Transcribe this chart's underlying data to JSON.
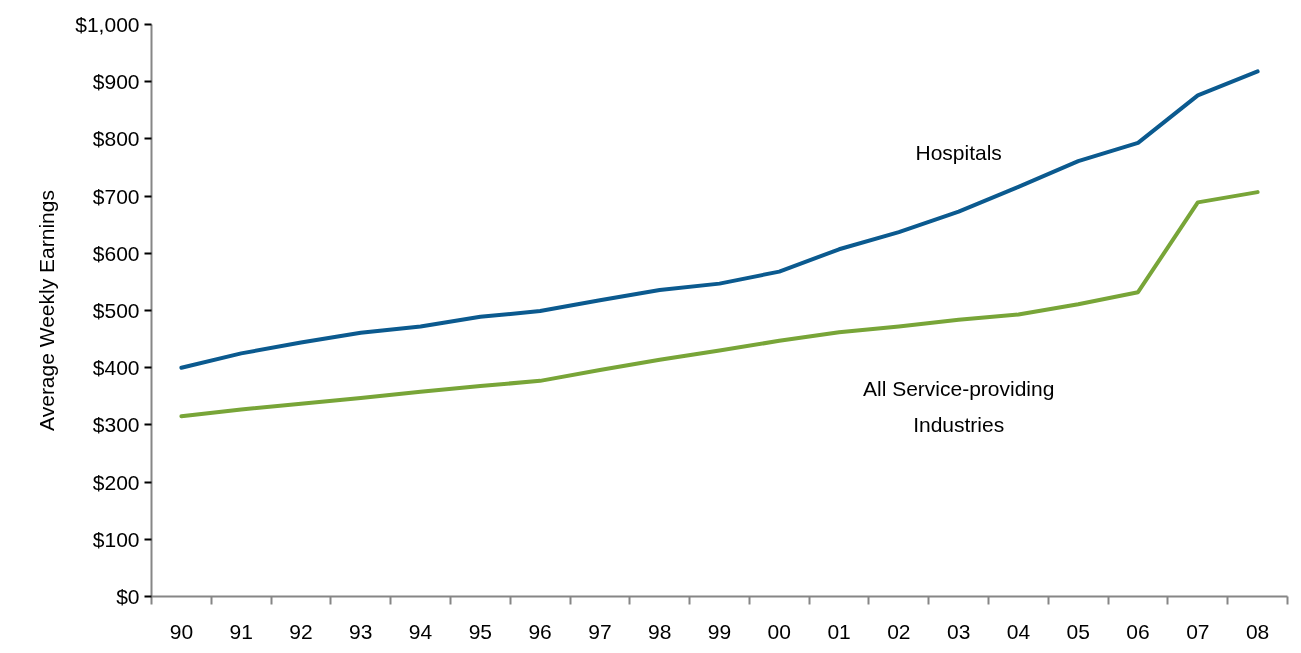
{
  "chart_data": {
    "type": "line",
    "ylabel": "Average Weekly Earnings",
    "categories": [
      "90",
      "91",
      "92",
      "93",
      "94",
      "95",
      "96",
      "97",
      "98",
      "99",
      "00",
      "01",
      "02",
      "03",
      "04",
      "05",
      "06",
      "07",
      "08"
    ],
    "ylim": [
      0,
      1000
    ],
    "yticks": [
      {
        "value": 0,
        "label": "$0"
      },
      {
        "value": 100,
        "label": "$100"
      },
      {
        "value": 200,
        "label": "$200"
      },
      {
        "value": 300,
        "label": "$300"
      },
      {
        "value": 400,
        "label": "$400"
      },
      {
        "value": 500,
        "label": "$500"
      },
      {
        "value": 600,
        "label": "$600"
      },
      {
        "value": 700,
        "label": "$700"
      },
      {
        "value": 800,
        "label": "$800"
      },
      {
        "value": 900,
        "label": "$900"
      },
      {
        "value": 1000,
        "label": "$1,000"
      }
    ],
    "series": [
      {
        "name": "Hospitals",
        "color": "#0b5a8f",
        "values": [
          400,
          425,
          444,
          461,
          472,
          489,
          499,
          518,
          536,
          547,
          568,
          607,
          637,
          673,
          716,
          761,
          793,
          876,
          918
        ]
      },
      {
        "name": "All Service-providing Industries",
        "color": "#78a538",
        "values": [
          315,
          327,
          337,
          347,
          358,
          368,
          377,
          396,
          414,
          430,
          447,
          462,
          472,
          484,
          493,
          511,
          532,
          689,
          707
        ]
      }
    ],
    "grid": false,
    "legend": false,
    "marker": "none",
    "line_style": "solid"
  }
}
